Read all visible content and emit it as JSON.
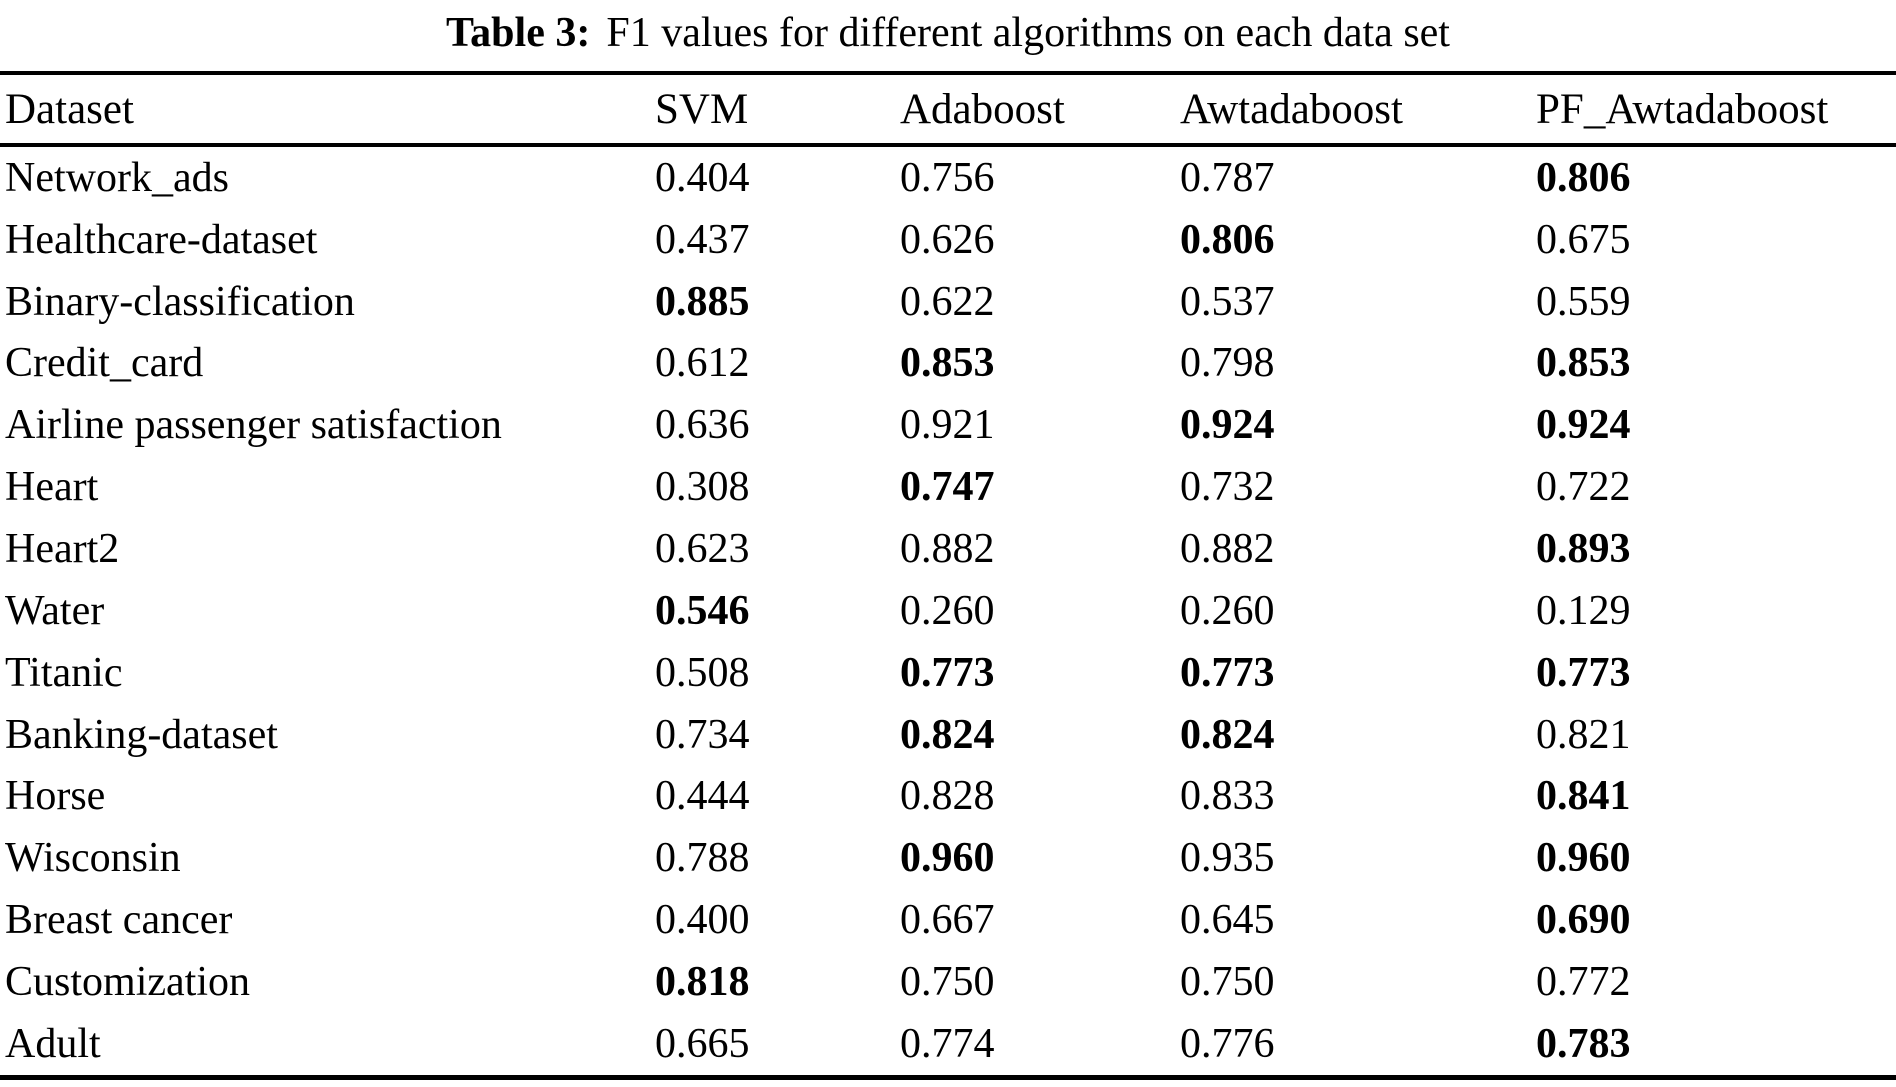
{
  "caption": {
    "label": "Table 3:",
    "text": "F1 values for different algorithms on each data set"
  },
  "table": {
    "columns": [
      "Dataset",
      "SVM",
      "Adaboost",
      "Awtadaboost",
      "PF_Awtadaboost"
    ],
    "rows": [
      {
        "dataset": "Network_ads",
        "values": [
          "0.404",
          "0.756",
          "0.787",
          "0.806"
        ],
        "bold": [
          false,
          false,
          false,
          true
        ]
      },
      {
        "dataset": "Healthcare-dataset",
        "values": [
          "0.437",
          "0.626",
          "0.806",
          "0.675"
        ],
        "bold": [
          false,
          false,
          true,
          false
        ]
      },
      {
        "dataset": "Binary-classification",
        "values": [
          "0.885",
          "0.622",
          "0.537",
          "0.559"
        ],
        "bold": [
          true,
          false,
          false,
          false
        ]
      },
      {
        "dataset": "Credit_card",
        "values": [
          "0.612",
          "0.853",
          "0.798",
          "0.853"
        ],
        "bold": [
          false,
          true,
          false,
          true
        ]
      },
      {
        "dataset": "Airline passenger satisfaction",
        "values": [
          "0.636",
          "0.921",
          "0.924",
          "0.924"
        ],
        "bold": [
          false,
          false,
          true,
          true
        ]
      },
      {
        "dataset": "Heart",
        "values": [
          "0.308",
          "0.747",
          "0.732",
          "0.722"
        ],
        "bold": [
          false,
          true,
          false,
          false
        ]
      },
      {
        "dataset": "Heart2",
        "values": [
          "0.623",
          "0.882",
          "0.882",
          "0.893"
        ],
        "bold": [
          false,
          false,
          false,
          true
        ]
      },
      {
        "dataset": "Water",
        "values": [
          "0.546",
          "0.260",
          "0.260",
          "0.129"
        ],
        "bold": [
          true,
          false,
          false,
          false
        ]
      },
      {
        "dataset": "Titanic",
        "values": [
          "0.508",
          "0.773",
          "0.773",
          "0.773"
        ],
        "bold": [
          false,
          true,
          true,
          true
        ]
      },
      {
        "dataset": "Banking-dataset",
        "values": [
          "0.734",
          "0.824",
          "0.824",
          "0.821"
        ],
        "bold": [
          false,
          true,
          true,
          false
        ]
      },
      {
        "dataset": "Horse",
        "values": [
          "0.444",
          "0.828",
          "0.833",
          "0.841"
        ],
        "bold": [
          false,
          false,
          false,
          true
        ]
      },
      {
        "dataset": "Wisconsin",
        "values": [
          "0.788",
          "0.960",
          "0.935",
          "0.960"
        ],
        "bold": [
          false,
          true,
          false,
          true
        ]
      },
      {
        "dataset": "Breast cancer",
        "values": [
          "0.400",
          "0.667",
          "0.645",
          "0.690"
        ],
        "bold": [
          false,
          false,
          false,
          true
        ]
      },
      {
        "dataset": "Customization",
        "values": [
          "0.818",
          "0.750",
          "0.750",
          "0.772"
        ],
        "bold": [
          true,
          false,
          false,
          false
        ]
      },
      {
        "dataset": "Adult",
        "values": [
          "0.665",
          "0.774",
          "0.776",
          "0.783"
        ],
        "bold": [
          false,
          false,
          false,
          true
        ]
      }
    ]
  }
}
